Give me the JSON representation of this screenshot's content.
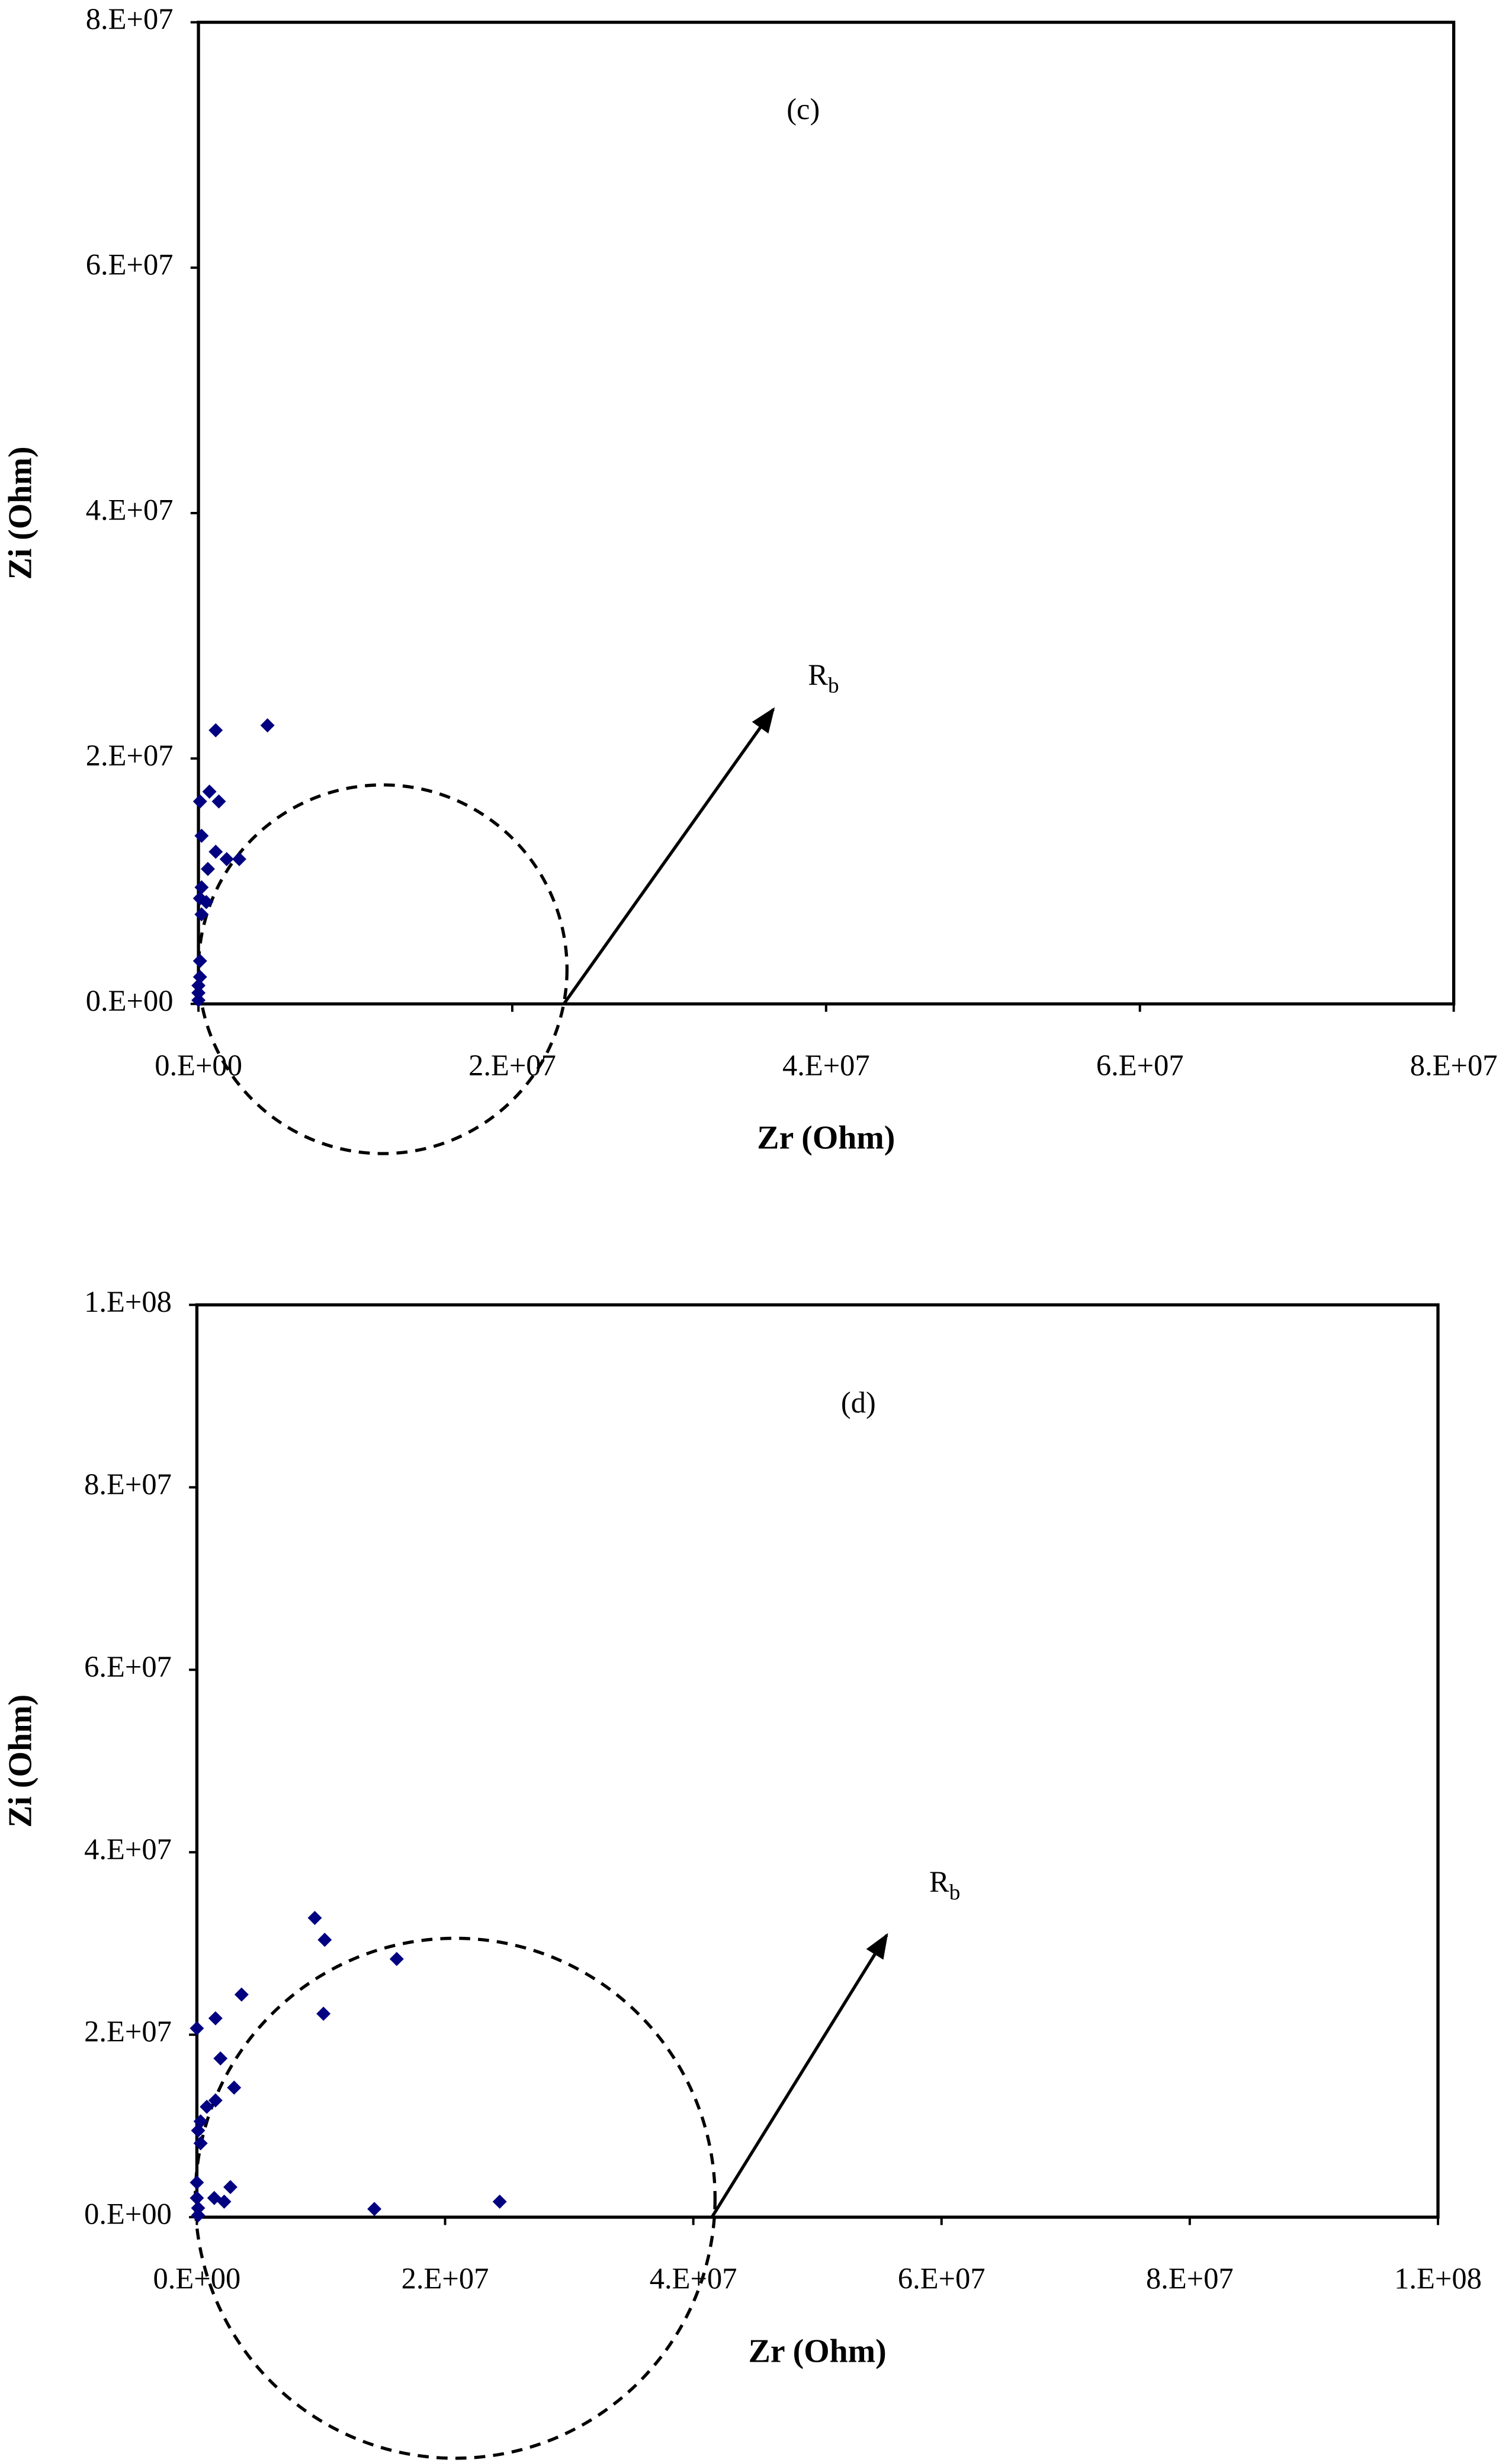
{
  "chart_data": [
    {
      "type": "scatter",
      "annotation": "(c)",
      "arrow_label": "R",
      "arrow_label_sub": "b",
      "x_label": "Zr (Ohm)",
      "y_label": "Zi (Ohm)",
      "color": "#000080",
      "xlim": [
        0,
        80000000
      ],
      "ylim": [
        0,
        80000000
      ],
      "xticks": [
        {
          "value": 0,
          "label": "0.E+00"
        },
        {
          "value": 20000000,
          "label": "2.E+07"
        },
        {
          "value": 40000000,
          "label": "4.E+07"
        },
        {
          "value": 60000000,
          "label": "6.E+07"
        },
        {
          "value": 80000000,
          "label": "8.E+07"
        }
      ],
      "yticks": [
        {
          "value": 0,
          "label": "0.E+00"
        },
        {
          "value": 20000000,
          "label": "2.E+07"
        },
        {
          "value": 40000000,
          "label": "4.E+07"
        },
        {
          "value": 60000000,
          "label": "6.E+07"
        },
        {
          "value": 80000000,
          "label": "8.E+07"
        }
      ],
      "x": [
        1100000,
        4400000,
        700000,
        1300000,
        100000,
        200000,
        1100000,
        1800000,
        2600000,
        600000,
        200000,
        100000,
        500000,
        200000,
        100000,
        100000,
        0,
        0,
        0
      ],
      "values": [
        22300000,
        22700000,
        17300000,
        16500000,
        16500000,
        13700000,
        12400000,
        11800000,
        11800000,
        11000000,
        9500000,
        8600000,
        8300000,
        7300000,
        3500000,
        2200000,
        1500000,
        900000,
        300000
      ]
    },
    {
      "type": "scatter",
      "annotation": "(d)",
      "arrow_label": "R",
      "arrow_label_sub": "b",
      "x_label": "Zr (Ohm)",
      "y_label": "Zi (Ohm)",
      "color": "#000080",
      "xlim": [
        0,
        100000000
      ],
      "ylim": [
        0,
        100000000
      ],
      "xticks": [
        {
          "value": 0,
          "label": "0.E+00"
        },
        {
          "value": 20000000,
          "label": "2.E+07"
        },
        {
          "value": 40000000,
          "label": "4.E+07"
        },
        {
          "value": 60000000,
          "label": "6.E+07"
        },
        {
          "value": 80000000,
          "label": "8.E+07"
        },
        {
          "value": 100000000,
          "label": "1.E+08"
        }
      ],
      "yticks": [
        {
          "value": 0,
          "label": "0.E+00"
        },
        {
          "value": 20000000,
          "label": "2.E+07"
        },
        {
          "value": 40000000,
          "label": "4.E+07"
        },
        {
          "value": 60000000,
          "label": "6.E+07"
        },
        {
          "value": 80000000,
          "label": "8.E+07"
        },
        {
          "value": 100000000,
          "label": "1.E+08"
        }
      ],
      "x": [
        9500000,
        10300000,
        16100000,
        3600000,
        10200000,
        0,
        1500000,
        1900000,
        3000000,
        1500000,
        800000,
        300000,
        100000,
        300000,
        2700000,
        1400000,
        2200000,
        14300000,
        24400000,
        0,
        0,
        100000,
        100000
      ],
      "values": [
        32800000,
        30400000,
        28300000,
        24400000,
        22300000,
        20700000,
        21800000,
        17400000,
        14200000,
        12800000,
        12100000,
        10500000,
        9500000,
        8100000,
        3300000,
        2100000,
        1700000,
        900000,
        1700000,
        3800000,
        2100000,
        1000000,
        200000
      ]
    }
  ]
}
